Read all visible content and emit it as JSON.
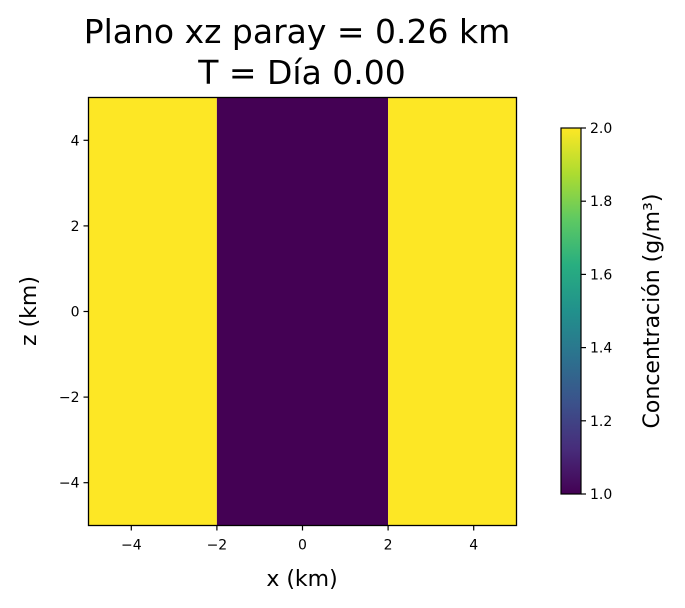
{
  "chart_data": {
    "type": "heatmap",
    "title_line1": "Plano xz paray = 0.26 km",
    "title_line2": "T = Día 0.00",
    "xlabel": "x (km)",
    "ylabel": "z (km)",
    "xlim": [
      -5,
      5
    ],
    "ylim": [
      -5,
      5
    ],
    "x_ticks": [
      -4,
      -2,
      0,
      2,
      4
    ],
    "y_ticks": [
      -4,
      -2,
      0,
      2,
      4
    ],
    "regions": [
      {
        "x_range": [
          -5,
          -2
        ],
        "value": 2.0
      },
      {
        "x_range": [
          -2,
          2
        ],
        "value": 1.0
      },
      {
        "x_range": [
          2,
          5
        ],
        "value": 2.0
      }
    ],
    "colorbar": {
      "label": "Concentración (g/m³)",
      "range": [
        1.0,
        2.0
      ],
      "ticks": [
        1.0,
        1.2,
        1.4,
        1.6,
        1.8,
        2.0
      ],
      "colormap": "viridis"
    },
    "colors": {
      "low": "#440154",
      "high": "#fde725"
    }
  }
}
